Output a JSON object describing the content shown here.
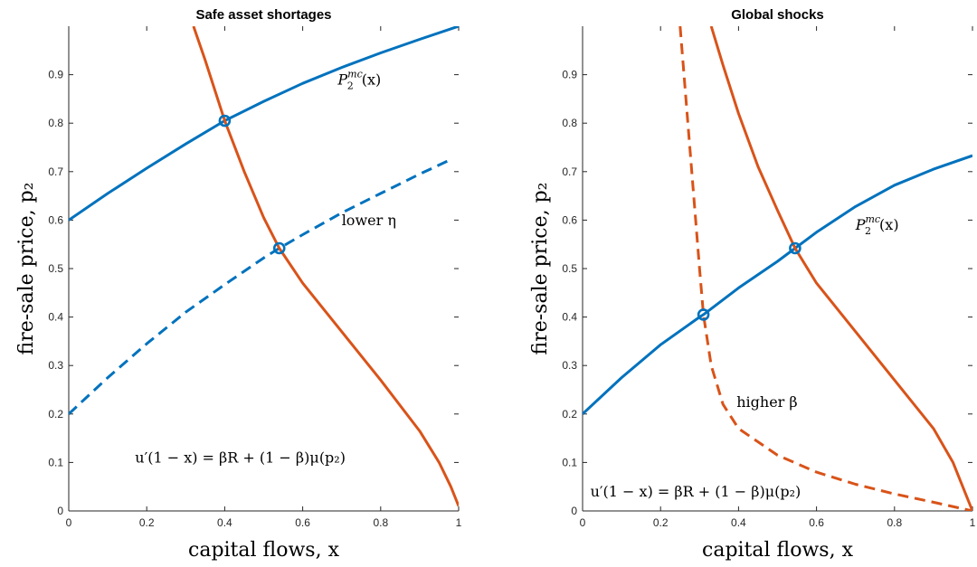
{
  "figure": {
    "ylabel": "fire-sale price, p₂",
    "xlabel": "capital flows, x"
  },
  "chart_data": [
    {
      "type": "line",
      "title": "Safe asset shortages",
      "xlabel": "capital flows, x",
      "ylabel": "fire-sale price, p₂",
      "xlim": [
        0,
        1
      ],
      "ylim": [
        0,
        1
      ],
      "xticks": [
        "0",
        "0.2",
        "0.4",
        "0.6",
        "0.8",
        "1"
      ],
      "yticks": [
        "0",
        "0.1",
        "0.2",
        "0.3",
        "0.4",
        "0.5",
        "0.6",
        "0.7",
        "0.8",
        "0.9"
      ],
      "grid": false,
      "series": [
        {
          "name": "P₂ᵐᶜ(x)",
          "color": "#0072BD",
          "style": "solid",
          "x": [
            0,
            0.1,
            0.2,
            0.3,
            0.4,
            0.5,
            0.6,
            0.7,
            0.8,
            0.9,
            1.0
          ],
          "y": [
            0.6,
            0.655,
            0.707,
            0.757,
            0.805,
            0.845,
            0.882,
            0.915,
            0.945,
            0.973,
            1.0
          ]
        },
        {
          "name": "lower η",
          "color": "#0072BD",
          "style": "dashed",
          "x": [
            0,
            0.1,
            0.2,
            0.3,
            0.4,
            0.5,
            0.54,
            0.6,
            0.7,
            0.8,
            0.9,
            0.98
          ],
          "y": [
            0.2,
            0.275,
            0.345,
            0.41,
            0.467,
            0.522,
            0.542,
            0.57,
            0.615,
            0.655,
            0.695,
            0.725
          ]
        },
        {
          "name": "u′(1 − x) = βR + (1 − β)μ(p₂)",
          "color": "#D95319",
          "style": "solid",
          "x": [
            0.32,
            0.35,
            0.4,
            0.45,
            0.5,
            0.54,
            0.6,
            0.7,
            0.8,
            0.9,
            0.95,
            0.98,
            1.0
          ],
          "y": [
            1.0,
            0.93,
            0.805,
            0.7,
            0.605,
            0.542,
            0.47,
            0.37,
            0.27,
            0.165,
            0.1,
            0.05,
            0.01
          ]
        }
      ],
      "markers": [
        {
          "x": 0.4,
          "y": 0.805
        },
        {
          "x": 0.54,
          "y": 0.542
        }
      ],
      "annotations": [
        {
          "text": "P",
          "sub": "2",
          "sup": "mc",
          "tail": "(x)",
          "x": 0.69,
          "y": 0.88
        },
        {
          "text": "lower η",
          "x": 0.7,
          "y": 0.59
        },
        {
          "text": "u′(1 − x) = βR + (1 − β)μ(p₂)",
          "x": 0.17,
          "y": 0.1
        }
      ]
    },
    {
      "type": "line",
      "title": "Global shocks",
      "xlabel": "capital flows, x",
      "ylabel": "fire-sale price, p₂",
      "xlim": [
        0,
        1
      ],
      "ylim": [
        0,
        1
      ],
      "xticks": [
        "0",
        "0.2",
        "0.4",
        "0.6",
        "0.8",
        "1"
      ],
      "yticks": [
        "0",
        "0.1",
        "0.2",
        "0.3",
        "0.4",
        "0.5",
        "0.6",
        "0.7",
        "0.8",
        "0.9"
      ],
      "grid": false,
      "series": [
        {
          "name": "P₂ᵐᶜ(x)",
          "color": "#0072BD",
          "style": "solid",
          "x": [
            0,
            0.1,
            0.2,
            0.3,
            0.31,
            0.4,
            0.5,
            0.545,
            0.6,
            0.7,
            0.8,
            0.9,
            1.0
          ],
          "y": [
            0.2,
            0.275,
            0.343,
            0.4,
            0.405,
            0.46,
            0.515,
            0.542,
            0.575,
            0.628,
            0.672,
            0.705,
            0.733
          ]
        },
        {
          "name": "higher β",
          "color": "#D95319",
          "style": "dashed",
          "x": [
            0.25,
            0.26,
            0.27,
            0.28,
            0.29,
            0.3,
            0.31,
            0.33,
            0.36,
            0.4,
            0.5,
            0.6,
            0.7,
            0.8,
            0.9,
            1.0
          ],
          "y": [
            1.0,
            0.9,
            0.8,
            0.7,
            0.6,
            0.5,
            0.405,
            0.3,
            0.22,
            0.17,
            0.115,
            0.08,
            0.055,
            0.035,
            0.018,
            0.0
          ]
        },
        {
          "name": "u′(1 − x) = βR + (1 − β)μ(p₂)",
          "color": "#D95319",
          "style": "solid",
          "x": [
            0.33,
            0.36,
            0.4,
            0.45,
            0.5,
            0.545,
            0.6,
            0.7,
            0.8,
            0.9,
            0.95,
            1.0
          ],
          "y": [
            1.0,
            0.92,
            0.82,
            0.71,
            0.62,
            0.542,
            0.47,
            0.37,
            0.27,
            0.17,
            0.1,
            0.0
          ]
        }
      ],
      "markers": [
        {
          "x": 0.31,
          "y": 0.405
        },
        {
          "x": 0.545,
          "y": 0.542
        }
      ],
      "annotations": [
        {
          "text": "P",
          "sub": "2",
          "sup": "mc",
          "tail": "(x)",
          "x": 0.7,
          "y": 0.58
        },
        {
          "text": "higher β",
          "x": 0.395,
          "y": 0.215
        },
        {
          "text": "u′(1 − x) = βR + (1 − β)μ(p₂)",
          "x": 0.02,
          "y": 0.03
        }
      ]
    }
  ]
}
